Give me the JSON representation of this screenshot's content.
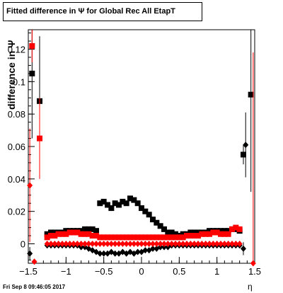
{
  "title": "Fitted difference in  Ψ  for Global Rec All EtapT",
  "footer_timestamp": "Fri Sep  8 09:46:05 2017",
  "chart_data": {
    "type": "scatter",
    "title": "Fitted difference in  Ψ  for Global Rec All EtapT",
    "xlabel": "η",
    "ylabel": "difference in Ψ",
    "xlim": [
      -1.5,
      1.5
    ],
    "ylim": [
      -0.012,
      0.132
    ],
    "xticks": [
      -1.5,
      -1,
      -0.5,
      0,
      0.5,
      1,
      1.5
    ],
    "xtick_labels": [
      "−1.5",
      "−1",
      "−0.5",
      "0",
      "0.5",
      "1",
      "1.5"
    ],
    "yticks": [
      0,
      0.02,
      0.04,
      0.06,
      0.08,
      0.1,
      0.12
    ],
    "ytick_labels": [
      "0",
      "0.02",
      "0.04",
      "0.06",
      "0.08",
      "0.1",
      "0.12"
    ],
    "grid": false,
    "legend": "none",
    "series": [
      {
        "color": "#000000",
        "marker": "square",
        "x": [
          -1.45,
          -1.35,
          -1.25,
          -1.2,
          -1.15,
          -1.1,
          -1.05,
          -1.0,
          -0.95,
          -0.9,
          -0.85,
          -0.8,
          -0.75,
          -0.7,
          -0.65,
          -0.6,
          -0.55,
          -0.5,
          -0.45,
          -0.4,
          -0.35,
          -0.3,
          -0.25,
          -0.2,
          -0.15,
          -0.1,
          -0.05,
          0.0,
          0.05,
          0.1,
          0.15,
          0.2,
          0.25,
          0.3,
          0.35,
          0.4,
          0.45,
          0.5,
          0.55,
          0.6,
          0.65,
          0.7,
          0.75,
          0.8,
          0.85,
          0.9,
          0.95,
          1.0,
          1.05,
          1.1,
          1.15,
          1.2,
          1.25,
          1.3,
          1.35,
          1.45
        ],
        "y": [
          0.105,
          0.088,
          0.006,
          0.007,
          0.007,
          0.007,
          0.007,
          0.008,
          0.008,
          0.008,
          0.008,
          0.008,
          0.009,
          0.009,
          0.009,
          0.008,
          0.025,
          0.026,
          0.024,
          0.022,
          0.025,
          0.024,
          0.026,
          0.025,
          0.028,
          0.027,
          0.025,
          0.022,
          0.02,
          0.018,
          0.015,
          0.013,
          0.011,
          0.009,
          0.007,
          0.007,
          0.006,
          0.005,
          0.006,
          0.006,
          0.007,
          0.007,
          0.007,
          0.007,
          0.007,
          0.008,
          0.008,
          0.008,
          0.008,
          0.008,
          0.008,
          0.009,
          0.009,
          0.008,
          0.055,
          0.092
        ],
        "yerr": [
          0.04,
          0.04,
          0,
          0,
          0,
          0,
          0,
          0,
          0,
          0,
          0,
          0,
          0,
          0,
          0,
          0,
          0,
          0,
          0,
          0,
          0,
          0,
          0,
          0,
          0,
          0,
          0,
          0,
          0,
          0,
          0,
          0,
          0,
          0,
          0,
          0,
          0,
          0,
          0,
          0,
          0,
          0,
          0,
          0,
          0,
          0,
          0,
          0,
          0,
          0,
          0,
          0,
          0,
          0,
          0.006,
          0.06
        ]
      },
      {
        "color": "#000000",
        "marker": "diamond",
        "x": [
          -1.48,
          -1.25,
          -1.2,
          -1.15,
          -1.1,
          -1.05,
          -1.0,
          -0.95,
          -0.9,
          -0.85,
          -0.8,
          -0.75,
          -0.7,
          -0.65,
          -0.6,
          -0.55,
          -0.5,
          -0.45,
          -0.4,
          -0.35,
          -0.3,
          -0.25,
          -0.2,
          -0.15,
          -0.1,
          -0.05,
          0.0,
          0.05,
          0.1,
          0.15,
          0.2,
          0.25,
          0.3,
          0.35,
          0.4,
          0.45,
          0.5,
          0.55,
          0.6,
          0.65,
          0.7,
          0.75,
          0.8,
          0.85,
          0.9,
          0.95,
          1.0,
          1.05,
          1.1,
          1.15,
          1.2,
          1.25,
          1.3,
          1.35,
          1.38
        ],
        "y": [
          -0.006,
          -0.001,
          -0.001,
          -0.001,
          -0.001,
          -0.001,
          -0.001,
          -0.001,
          -0.001,
          -0.001,
          -0.002,
          -0.002,
          -0.003,
          -0.004,
          -0.005,
          -0.006,
          -0.006,
          -0.006,
          -0.005,
          -0.006,
          -0.006,
          -0.005,
          -0.006,
          -0.005,
          -0.006,
          -0.005,
          -0.005,
          -0.004,
          -0.004,
          -0.003,
          -0.003,
          -0.002,
          -0.002,
          -0.002,
          -0.001,
          -0.001,
          -0.001,
          -0.001,
          -0.001,
          -0.001,
          -0.001,
          -0.001,
          -0.001,
          -0.001,
          -0.001,
          -0.001,
          -0.001,
          -0.001,
          -0.001,
          -0.001,
          -0.001,
          -0.001,
          -0.001,
          -0.003,
          0.061
        ],
        "yerr": [
          0.004,
          0,
          0,
          0,
          0,
          0,
          0,
          0,
          0,
          0,
          0,
          0,
          0,
          0,
          0,
          0,
          0,
          0,
          0,
          0,
          0,
          0,
          0,
          0,
          0,
          0,
          0,
          0,
          0,
          0,
          0,
          0,
          0,
          0,
          0,
          0,
          0,
          0,
          0,
          0,
          0,
          0,
          0,
          0,
          0,
          0,
          0,
          0,
          0,
          0,
          0,
          0,
          0,
          0.004,
          0.02
        ]
      },
      {
        "color": "#ff0000",
        "marker": "square",
        "x": [
          -1.45,
          -1.35,
          -1.25,
          -1.2,
          -1.15,
          -1.1,
          -1.05,
          -1.0,
          -0.95,
          -0.9,
          -0.85,
          -0.8,
          -0.75,
          -0.7,
          -0.65,
          -0.6,
          -0.55,
          -0.5,
          -0.45,
          -0.4,
          -0.35,
          -0.3,
          -0.25,
          -0.2,
          -0.15,
          -0.1,
          -0.05,
          0.0,
          0.05,
          0.1,
          0.15,
          0.2,
          0.25,
          0.3,
          0.35,
          0.4,
          0.45,
          0.5,
          0.55,
          0.6,
          0.65,
          0.7,
          0.75,
          0.8,
          0.85,
          0.9,
          0.95,
          1.0,
          1.05,
          1.1,
          1.15,
          1.2,
          1.25,
          1.3
        ],
        "y": [
          0.122,
          0.065,
          0.004,
          0.005,
          0.005,
          0.006,
          0.006,
          0.006,
          0.007,
          0.007,
          0.007,
          0.006,
          0.006,
          0.006,
          0.005,
          0.005,
          0.004,
          0.004,
          0.004,
          0.004,
          0.004,
          0.004,
          0.004,
          0.004,
          0.004,
          0.004,
          0.004,
          0.004,
          0.004,
          0.004,
          0.004,
          0.004,
          0.004,
          0.004,
          0.004,
          0.004,
          0.004,
          0.004,
          0.004,
          0.005,
          0.005,
          0.005,
          0.005,
          0.006,
          0.006,
          0.006,
          0.007,
          0.007,
          0.006,
          0.006,
          0.006,
          0.009,
          0.01,
          0.009
        ],
        "yerr": [
          0.01,
          0.025,
          0,
          0,
          0,
          0,
          0,
          0,
          0,
          0,
          0,
          0,
          0,
          0,
          0,
          0,
          0,
          0,
          0,
          0,
          0,
          0,
          0,
          0,
          0,
          0,
          0,
          0,
          0,
          0,
          0,
          0,
          0,
          0,
          0,
          0,
          0,
          0,
          0,
          0,
          0,
          0,
          0,
          0,
          0,
          0,
          0,
          0,
          0,
          0,
          0,
          0,
          0,
          0
        ]
      },
      {
        "color": "#ff0000",
        "marker": "diamond",
        "x": [
          -1.48,
          -1.42,
          -1.25,
          -1.2,
          -1.15,
          -1.1,
          -1.05,
          -1.0,
          -0.95,
          -0.9,
          -0.85,
          -0.8,
          -0.75,
          -0.7,
          -0.65,
          -0.6,
          -0.55,
          -0.5,
          -0.45,
          -0.4,
          -0.35,
          -0.3,
          -0.25,
          -0.2,
          -0.15,
          -0.1,
          -0.05,
          0.0,
          0.05,
          0.1,
          0.15,
          0.2,
          0.25,
          0.3,
          0.35,
          0.4,
          0.45,
          0.5,
          0.55,
          0.6,
          0.65,
          0.7,
          0.75,
          0.8,
          0.85,
          0.9,
          0.95,
          1.0,
          1.05,
          1.1,
          1.15,
          1.2,
          1.25,
          1.3,
          1.48
        ],
        "y": [
          0.036,
          -0.011,
          0.0,
          0.0,
          0.0,
          0.0,
          0.0,
          0.0,
          0.0,
          0.0,
          0.0,
          0.0,
          0.0,
          0.0,
          0.0,
          0.0,
          0.0,
          0.0,
          0.0,
          0.0,
          0.0,
          0.0,
          0.0,
          0.0,
          0.0,
          0.0,
          0.0,
          0.0,
          0.0,
          0.0,
          0.0,
          0.0,
          0.0,
          0.0,
          0.0,
          0.0,
          0.0,
          0.0,
          0.0,
          0.0,
          0.0,
          0.0,
          0.0,
          0.0,
          0.0,
          0.0,
          0.0,
          0.0,
          0.0,
          0.0,
          0.0,
          0.0,
          0.0,
          0.0,
          -0.012
        ],
        "yerr": [
          0.035,
          0,
          0,
          0,
          0,
          0,
          0,
          0,
          0,
          0,
          0,
          0,
          0,
          0,
          0,
          0,
          0,
          0,
          0,
          0,
          0,
          0,
          0,
          0,
          0,
          0,
          0,
          0,
          0,
          0,
          0,
          0,
          0,
          0,
          0,
          0,
          0,
          0,
          0,
          0,
          0,
          0,
          0,
          0,
          0,
          0,
          0,
          0,
          0,
          0,
          0,
          0,
          0,
          0,
          0.13
        ]
      }
    ]
  }
}
